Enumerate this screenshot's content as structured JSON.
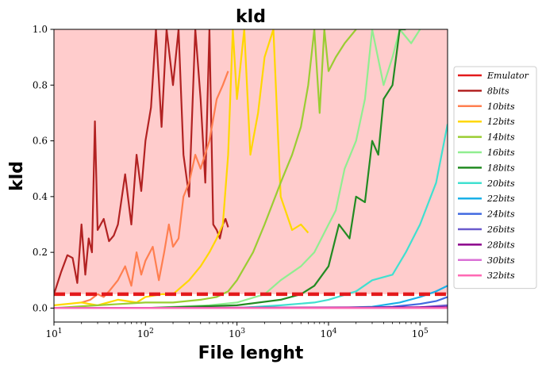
{
  "chart_data": {
    "type": "line",
    "title": "kld",
    "xlabel": "File lenght",
    "ylabel": "kld",
    "x_scale": "log",
    "xlim": [
      10,
      200000
    ],
    "ylim": [
      -0.05,
      1.0
    ],
    "x_ticks": [
      10,
      100,
      1000,
      10000,
      100000
    ],
    "x_tick_labels": [
      {
        "base": "10",
        "exp": "1"
      },
      {
        "base": "10",
        "exp": "2"
      },
      {
        "base": "10",
        "exp": "3"
      },
      {
        "base": "10",
        "exp": "4"
      },
      {
        "base": "10",
        "exp": "5"
      }
    ],
    "y_ticks": [
      0.0,
      0.2,
      0.4,
      0.6,
      0.8,
      1.0
    ],
    "y_tick_labels": [
      "0.0",
      "0.2",
      "0.4",
      "0.6",
      "0.8",
      "1.0"
    ],
    "background_region": {
      "y_from": 0.05,
      "y_to": 1.0,
      "color": "#ffcccc"
    },
    "legend_position": "right",
    "series": [
      {
        "name": "Emulator",
        "color": "#e31a1c",
        "dashed": true,
        "x": [
          10,
          200000
        ],
        "y": [
          0.05,
          0.05
        ]
      },
      {
        "name": "8bits",
        "color": "#b22222",
        "x": [
          10,
          12,
          14,
          16,
          18,
          20,
          22,
          24,
          26,
          28,
          30,
          35,
          40,
          45,
          50,
          60,
          70,
          80,
          90,
          100,
          115,
          130,
          150,
          170,
          200,
          230,
          260,
          300,
          350,
          400,
          450,
          500,
          550,
          600,
          650,
          700,
          750,
          800
        ],
        "y": [
          0.05,
          0.13,
          0.19,
          0.18,
          0.09,
          0.3,
          0.12,
          0.25,
          0.2,
          0.67,
          0.28,
          0.32,
          0.24,
          0.26,
          0.3,
          0.48,
          0.3,
          0.55,
          0.42,
          0.6,
          0.72,
          1.0,
          0.65,
          1.0,
          0.8,
          1.0,
          0.55,
          0.4,
          1.0,
          0.75,
          0.45,
          1.0,
          0.3,
          0.28,
          0.25,
          0.3,
          0.32,
          0.29
        ]
      },
      {
        "name": "10bits",
        "color": "#ff7f50",
        "x": [
          20,
          25,
          30,
          35,
          40,
          50,
          60,
          70,
          80,
          90,
          100,
          120,
          140,
          160,
          180,
          200,
          230,
          260,
          300,
          350,
          400,
          500,
          600,
          700,
          800
        ],
        "y": [
          0.02,
          0.03,
          0.05,
          0.04,
          0.06,
          0.1,
          0.15,
          0.08,
          0.2,
          0.12,
          0.17,
          0.22,
          0.1,
          0.2,
          0.3,
          0.22,
          0.25,
          0.4,
          0.45,
          0.55,
          0.5,
          0.6,
          0.75,
          0.8,
          0.85
        ]
      },
      {
        "name": "12bits",
        "color": "#ffd700",
        "x": [
          10,
          20,
          30,
          50,
          80,
          100,
          150,
          200,
          300,
          400,
          500,
          600,
          700,
          800,
          900,
          1000,
          1200,
          1400,
          1700,
          2000,
          2500,
          3000,
          4000,
          5000,
          6000
        ],
        "y": [
          0.01,
          0.02,
          0.01,
          0.03,
          0.02,
          0.04,
          0.05,
          0.05,
          0.1,
          0.15,
          0.2,
          0.25,
          0.3,
          0.55,
          1.0,
          0.75,
          1.0,
          0.55,
          0.7,
          0.9,
          1.0,
          0.4,
          0.28,
          0.3,
          0.27
        ]
      },
      {
        "name": "14bits",
        "color": "#9acd32",
        "x": [
          10,
          30,
          100,
          200,
          400,
          600,
          800,
          1000,
          1500,
          2000,
          3000,
          4000,
          5000,
          6000,
          7000,
          8000,
          9000,
          10000,
          12000,
          15000,
          20000
        ],
        "y": [
          0.0,
          0.01,
          0.02,
          0.02,
          0.03,
          0.04,
          0.06,
          0.1,
          0.2,
          0.3,
          0.45,
          0.55,
          0.65,
          0.8,
          1.0,
          0.7,
          1.0,
          0.85,
          0.9,
          0.95,
          1.0
        ]
      },
      {
        "name": "16bits",
        "color": "#90ee90",
        "x": [
          100,
          500,
          1000,
          2000,
          3000,
          5000,
          7000,
          10000,
          12000,
          15000,
          20000,
          25000,
          30000,
          40000,
          50000,
          60000,
          80000,
          100000
        ],
        "y": [
          0.0,
          0.01,
          0.02,
          0.05,
          0.1,
          0.15,
          0.2,
          0.3,
          0.35,
          0.5,
          0.6,
          0.75,
          1.0,
          0.8,
          0.9,
          1.0,
          0.95,
          1.0
        ]
      },
      {
        "name": "18bits",
        "color": "#228b22",
        "x": [
          100,
          1000,
          3000,
          5000,
          7000,
          10000,
          13000,
          17000,
          20000,
          25000,
          30000,
          35000,
          40000,
          50000,
          60000,
          70000
        ],
        "y": [
          0.0,
          0.01,
          0.03,
          0.05,
          0.08,
          0.15,
          0.3,
          0.25,
          0.4,
          0.38,
          0.6,
          0.55,
          0.75,
          0.8,
          1.0,
          1.0
        ]
      },
      {
        "name": "20bits",
        "color": "#40e0d0",
        "x": [
          100,
          1000,
          3000,
          7000,
          10000,
          20000,
          30000,
          50000,
          70000,
          100000,
          150000,
          200000
        ],
        "y": [
          0.0,
          0.0,
          0.01,
          0.02,
          0.03,
          0.06,
          0.1,
          0.12,
          0.2,
          0.3,
          0.45,
          0.66
        ]
      },
      {
        "name": "22bits",
        "color": "#1ab0e8",
        "x": [
          10,
          10000,
          30000,
          60000,
          100000,
          150000,
          200000
        ],
        "y": [
          0.0,
          0.0,
          0.005,
          0.02,
          0.04,
          0.06,
          0.08
        ]
      },
      {
        "name": "24bits",
        "color": "#4169e1",
        "x": [
          10,
          20000,
          50000,
          100000,
          150000,
          200000
        ],
        "y": [
          0.0,
          0.0,
          0.005,
          0.015,
          0.025,
          0.04
        ]
      },
      {
        "name": "26bits",
        "color": "#6a5acd",
        "x": [
          10,
          50000,
          100000,
          200000
        ],
        "y": [
          0.0,
          0.0,
          0.003,
          0.01
        ]
      },
      {
        "name": "28bits",
        "color": "#8b008b",
        "x": [
          10,
          200000
        ],
        "y": [
          0.0,
          0.003
        ]
      },
      {
        "name": "30bits",
        "color": "#da70d6",
        "x": [
          10,
          200000
        ],
        "y": [
          0.0,
          0.0
        ]
      },
      {
        "name": "32bits",
        "color": "#ff69b4",
        "x": [
          10,
          200000
        ],
        "y": [
          0.0,
          0.0
        ]
      }
    ]
  }
}
